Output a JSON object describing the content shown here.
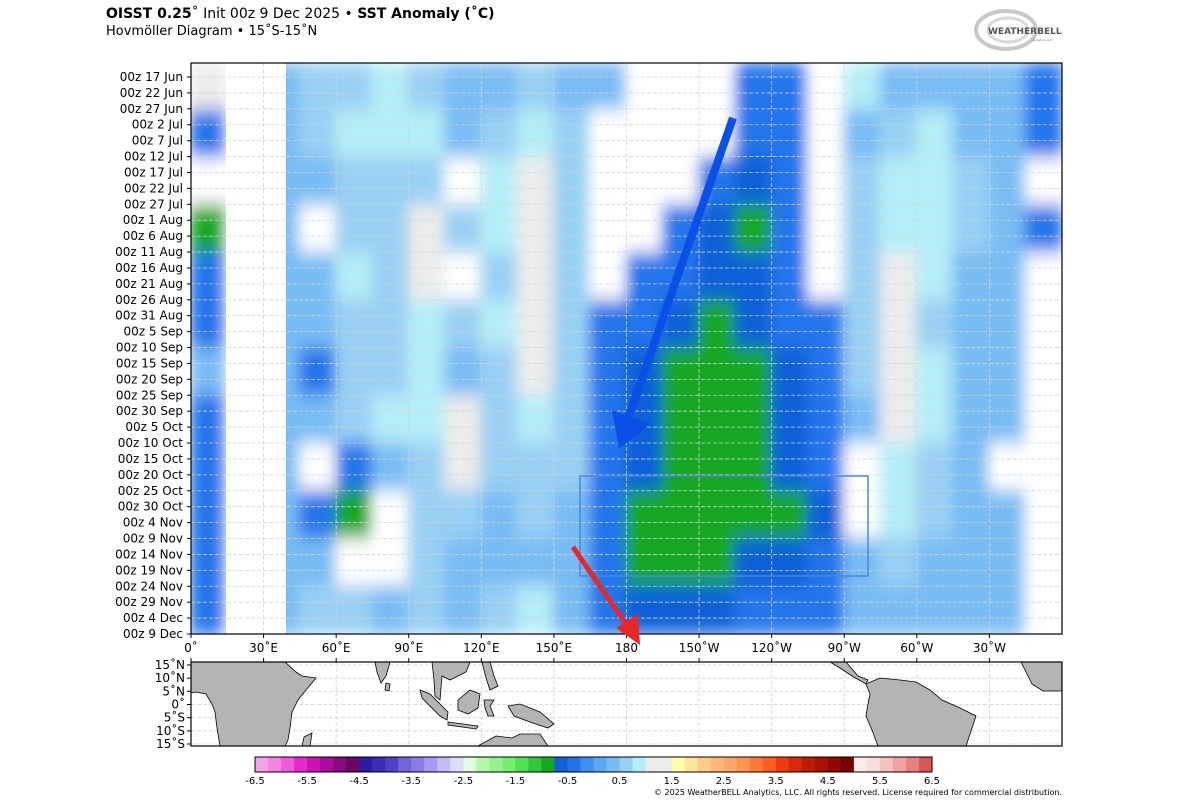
{
  "header": {
    "title_product": "OISST 0.25",
    "title_init": "˚ Init 00z 9 Dec 2025 • ",
    "title_field": "SST Anomaly (˚C)",
    "subtitle": "Hovmöller Diagram • 15˚S-15˚N",
    "logo_text": "WeatherBELL Analytics LLC"
  },
  "footer": {
    "copyright": "© 2025 WeatherBELL Analytics, LLC. All rights reserved. License required for commercial distribution."
  },
  "colors": {
    "arrow_westward": "#0a50e6",
    "arrow_red": "#e82828",
    "box_outline": "#4a86e0",
    "land": "#b4b4b4"
  },
  "chart_data": {
    "type": "heatmap",
    "title": "SST Anomaly (˚C)",
    "xlabel": "",
    "ylabel": "",
    "x_ticks": [
      "0˚",
      "30˚E",
      "60˚E",
      "90˚E",
      "120˚E",
      "150˚E",
      "180",
      "150˚W",
      "120˚W",
      "90˚W",
      "60˚W",
      "30˚W"
    ],
    "x_range_deg_east": [
      0,
      360
    ],
    "y_ticks": [
      "00z 17 Jun",
      "00z 22 Jun",
      "00z 27 Jun",
      "00z 2 Jul",
      "00z 7 Jul",
      "00z 12 Jul",
      "00z 17 Jul",
      "00z 22 Jul",
      "00z 27 Jul",
      "00z 1 Aug",
      "00z 6 Aug",
      "00z 11 Aug",
      "00z 16 Aug",
      "00z 21 Aug",
      "00z 26 Aug",
      "00z 31 Aug",
      "00z 5 Sep",
      "00z 10 Sep",
      "00z 15 Sep",
      "00z 20 Sep",
      "00z 25 Sep",
      "00z 30 Sep",
      "00z 5 Oct",
      "00z 10 Oct",
      "00z 15 Oct",
      "00z 20 Oct",
      "00z 25 Oct",
      "00z 30 Oct",
      "00z 4 Nov",
      "00z 9 Nov",
      "00z 14 Nov",
      "00z 19 Nov",
      "00z 24 Nov",
      "00z 29 Nov",
      "00z 4 Dec",
      "00z 9 Dec"
    ],
    "grid": true,
    "approx_grid": {
      "lon_bins_start_deg_east": [
        0,
        15,
        30,
        45,
        60,
        75,
        90,
        105,
        120,
        135,
        150,
        165,
        180,
        195,
        210,
        225,
        240,
        255,
        270,
        285,
        300,
        315,
        330,
        345
      ],
      "time_bins": [
        "17 Jun",
        "2 Jul",
        "17 Jul",
        "1 Aug",
        "16 Aug",
        "31 Aug",
        "15 Sep",
        "30 Sep",
        "15 Oct",
        "30 Oct",
        "14 Nov",
        "29 Nov"
      ],
      "values": [
        [
          1.0,
          null,
          0.3,
          0.6,
          0.7,
          0.8,
          0.6,
          0.3,
          0.4,
          0.7,
          0.4,
          0.3,
          0.2,
          0.0,
          -0.2,
          -0.5,
          -0.3,
          0.0,
          0.8,
          0.3,
          0.3,
          0.3,
          0.3,
          -0.3
        ],
        [
          -0.5,
          null,
          0.3,
          0.5,
          0.8,
          0.9,
          0.8,
          0.3,
          0.7,
          0.9,
          0.5,
          0.1,
          0.0,
          0.0,
          -0.2,
          -0.5,
          -0.4,
          -0.2,
          0.3,
          0.6,
          0.8,
          0.4,
          0.3,
          -0.3
        ],
        [
          0.2,
          null,
          0.3,
          0.3,
          0.6,
          0.7,
          0.6,
          0.2,
          0.8,
          1.0,
          0.5,
          0.0,
          0.0,
          0.0,
          -0.4,
          -0.6,
          -0.3,
          0.0,
          0.5,
          0.8,
          0.9,
          0.5,
          0.3,
          0.0
        ],
        [
          -0.8,
          null,
          0.3,
          -0.2,
          0.5,
          0.6,
          1.0,
          0.7,
          0.8,
          1.1,
          0.5,
          0.0,
          0.0,
          -0.3,
          -0.6,
          -0.8,
          -0.4,
          -0.1,
          0.5,
          0.9,
          0.9,
          0.5,
          0.3,
          -0.4
        ],
        [
          -0.3,
          null,
          0.3,
          0.4,
          0.8,
          0.6,
          1.0,
          0.2,
          0.6,
          1.1,
          0.6,
          -0.1,
          -0.3,
          -0.5,
          -0.7,
          -0.7,
          -0.5,
          -0.1,
          0.5,
          1.2,
          0.8,
          0.4,
          0.3,
          0.0
        ],
        [
          -0.3,
          null,
          0.3,
          0.3,
          0.7,
          0.6,
          0.9,
          0.5,
          0.8,
          1.0,
          0.6,
          -0.3,
          -0.5,
          -0.6,
          -0.8,
          -0.7,
          -0.5,
          -0.3,
          0.6,
          1.0,
          0.7,
          0.4,
          0.3,
          -0.2
        ],
        [
          0.3,
          null,
          0.3,
          -0.3,
          0.5,
          0.7,
          0.8,
          0.3,
          0.6,
          1.0,
          0.6,
          -0.4,
          -0.6,
          -0.8,
          -0.8,
          -0.8,
          -0.6,
          -0.3,
          0.5,
          1.4,
          0.9,
          0.4,
          0.3,
          -0.2
        ],
        [
          -0.3,
          null,
          0.3,
          0.3,
          0.7,
          0.8,
          0.9,
          1.0,
          0.6,
          0.9,
          0.6,
          -0.3,
          -0.7,
          -0.8,
          -0.8,
          -0.8,
          -0.6,
          -0.3,
          0.4,
          1.4,
          0.8,
          0.4,
          0.3,
          0.0
        ],
        [
          -0.3,
          null,
          0.3,
          0.2,
          -0.3,
          0.4,
          0.7,
          1.0,
          0.7,
          0.6,
          0.5,
          -0.3,
          -0.7,
          -0.9,
          -0.9,
          -0.8,
          -0.6,
          -0.3,
          0.2,
          0.9,
          0.6,
          0.3,
          0.2,
          -0.2
        ],
        [
          -0.4,
          null,
          0.3,
          -0.3,
          -1.0,
          -0.2,
          0.6,
          0.6,
          0.4,
          0.5,
          0.4,
          -0.5,
          -0.8,
          -1.0,
          -0.9,
          -0.9,
          -0.8,
          -0.6,
          0.2,
          0.8,
          0.5,
          0.3,
          0.3,
          0.0
        ],
        [
          -0.4,
          null,
          0.3,
          0.3,
          0.0,
          0.2,
          0.5,
          0.4,
          0.3,
          0.4,
          0.3,
          -0.4,
          -0.8,
          -0.9,
          -0.8,
          -0.7,
          -0.7,
          -0.5,
          0.4,
          0.6,
          0.3,
          0.3,
          0.3,
          0.0
        ],
        [
          -0.3,
          null,
          0.3,
          0.5,
          0.5,
          0.4,
          0.5,
          0.4,
          0.6,
          0.8,
          0.4,
          -0.4,
          -0.7,
          -0.7,
          -0.6,
          -0.5,
          -0.5,
          -0.3,
          0.3,
          0.4,
          0.4,
          0.3,
          0.3,
          0.0
        ]
      ]
    },
    "colorbar": {
      "ticks": [
        "-6.5",
        "-5.5",
        "-4.5",
        "-3.5",
        "-2.5",
        "-1.5",
        "-0.5",
        "0.5",
        "1.5",
        "2.5",
        "3.5",
        "4.5",
        "5.5",
        "6.5"
      ],
      "range": [
        -6.5,
        6.5
      ],
      "step": 0.25
    },
    "map_lat_ticks": [
      "15˚N",
      "10˚N",
      "5˚N",
      "0˚",
      "5˚S",
      "10˚S",
      "15˚S"
    ]
  }
}
